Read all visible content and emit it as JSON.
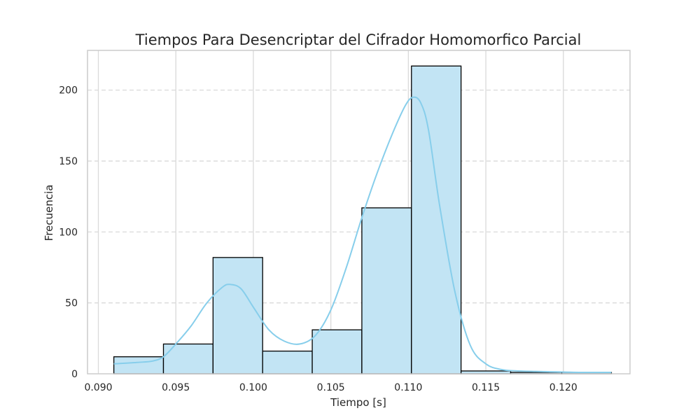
{
  "chart_data": {
    "type": "histogram",
    "title": "Tiempos Para Desencriptar del Cifrador Homomorfico Parcial",
    "xlabel": "Tiempo [s]",
    "ylabel": "Frecuencia",
    "xlim": [
      0.0893,
      0.1243
    ],
    "ylim": [
      0,
      228
    ],
    "x_ticks": [
      0.09,
      0.095,
      0.1,
      0.105,
      0.11,
      0.115,
      0.12
    ],
    "x_tick_labels": [
      "0.090",
      "0.095",
      "0.100",
      "0.105",
      "0.110",
      "0.115",
      "0.120"
    ],
    "y_ticks": [
      0,
      50,
      100,
      150,
      200
    ],
    "y_tick_labels": [
      "0",
      "50",
      "100",
      "150",
      "200"
    ],
    "grid": {
      "vertical": "solid",
      "horizontal": "dashed"
    },
    "bins": [
      {
        "x0": 0.091,
        "x1": 0.0942,
        "count": 12
      },
      {
        "x0": 0.0942,
        "x1": 0.0974,
        "count": 21
      },
      {
        "x0": 0.0974,
        "x1": 0.1006,
        "count": 82
      },
      {
        "x0": 0.1006,
        "x1": 0.1038,
        "count": 16
      },
      {
        "x0": 0.1038,
        "x1": 0.107,
        "count": 31
      },
      {
        "x0": 0.107,
        "x1": 0.1102,
        "count": 117
      },
      {
        "x0": 0.1102,
        "x1": 0.1134,
        "count": 217
      },
      {
        "x0": 0.1134,
        "x1": 0.1166,
        "count": 2
      },
      {
        "x0": 0.1166,
        "x1": 0.1199,
        "count": 1
      },
      {
        "x0": 0.1199,
        "x1": 0.1231,
        "count": 1
      }
    ],
    "kde": {
      "x": [
        0.091,
        0.0925,
        0.0935,
        0.0942,
        0.095,
        0.096,
        0.097,
        0.098,
        0.0985,
        0.0992,
        0.1,
        0.101,
        0.102,
        0.103,
        0.104,
        0.105,
        0.106,
        0.107,
        0.108,
        0.109,
        0.1098,
        0.1103,
        0.1108,
        0.1113,
        0.112,
        0.113,
        0.114,
        0.115,
        0.116,
        0.117,
        0.119,
        0.121,
        0.1231
      ],
      "y": [
        7,
        8,
        9,
        12,
        21,
        34,
        50,
        61,
        63,
        60,
        47,
        31,
        23,
        21,
        27,
        45,
        75,
        110,
        142,
        170,
        189,
        195,
        191,
        172,
        120,
        58,
        20,
        7,
        3,
        2,
        1.5,
        1,
        1
      ]
    },
    "colors": {
      "bar_fill": "#c2e4f4",
      "bar_edge": "#000000",
      "kde": "#87ceeb",
      "grid": "#d9d9d9",
      "frame": "#cccccc",
      "text": "#262626"
    }
  }
}
